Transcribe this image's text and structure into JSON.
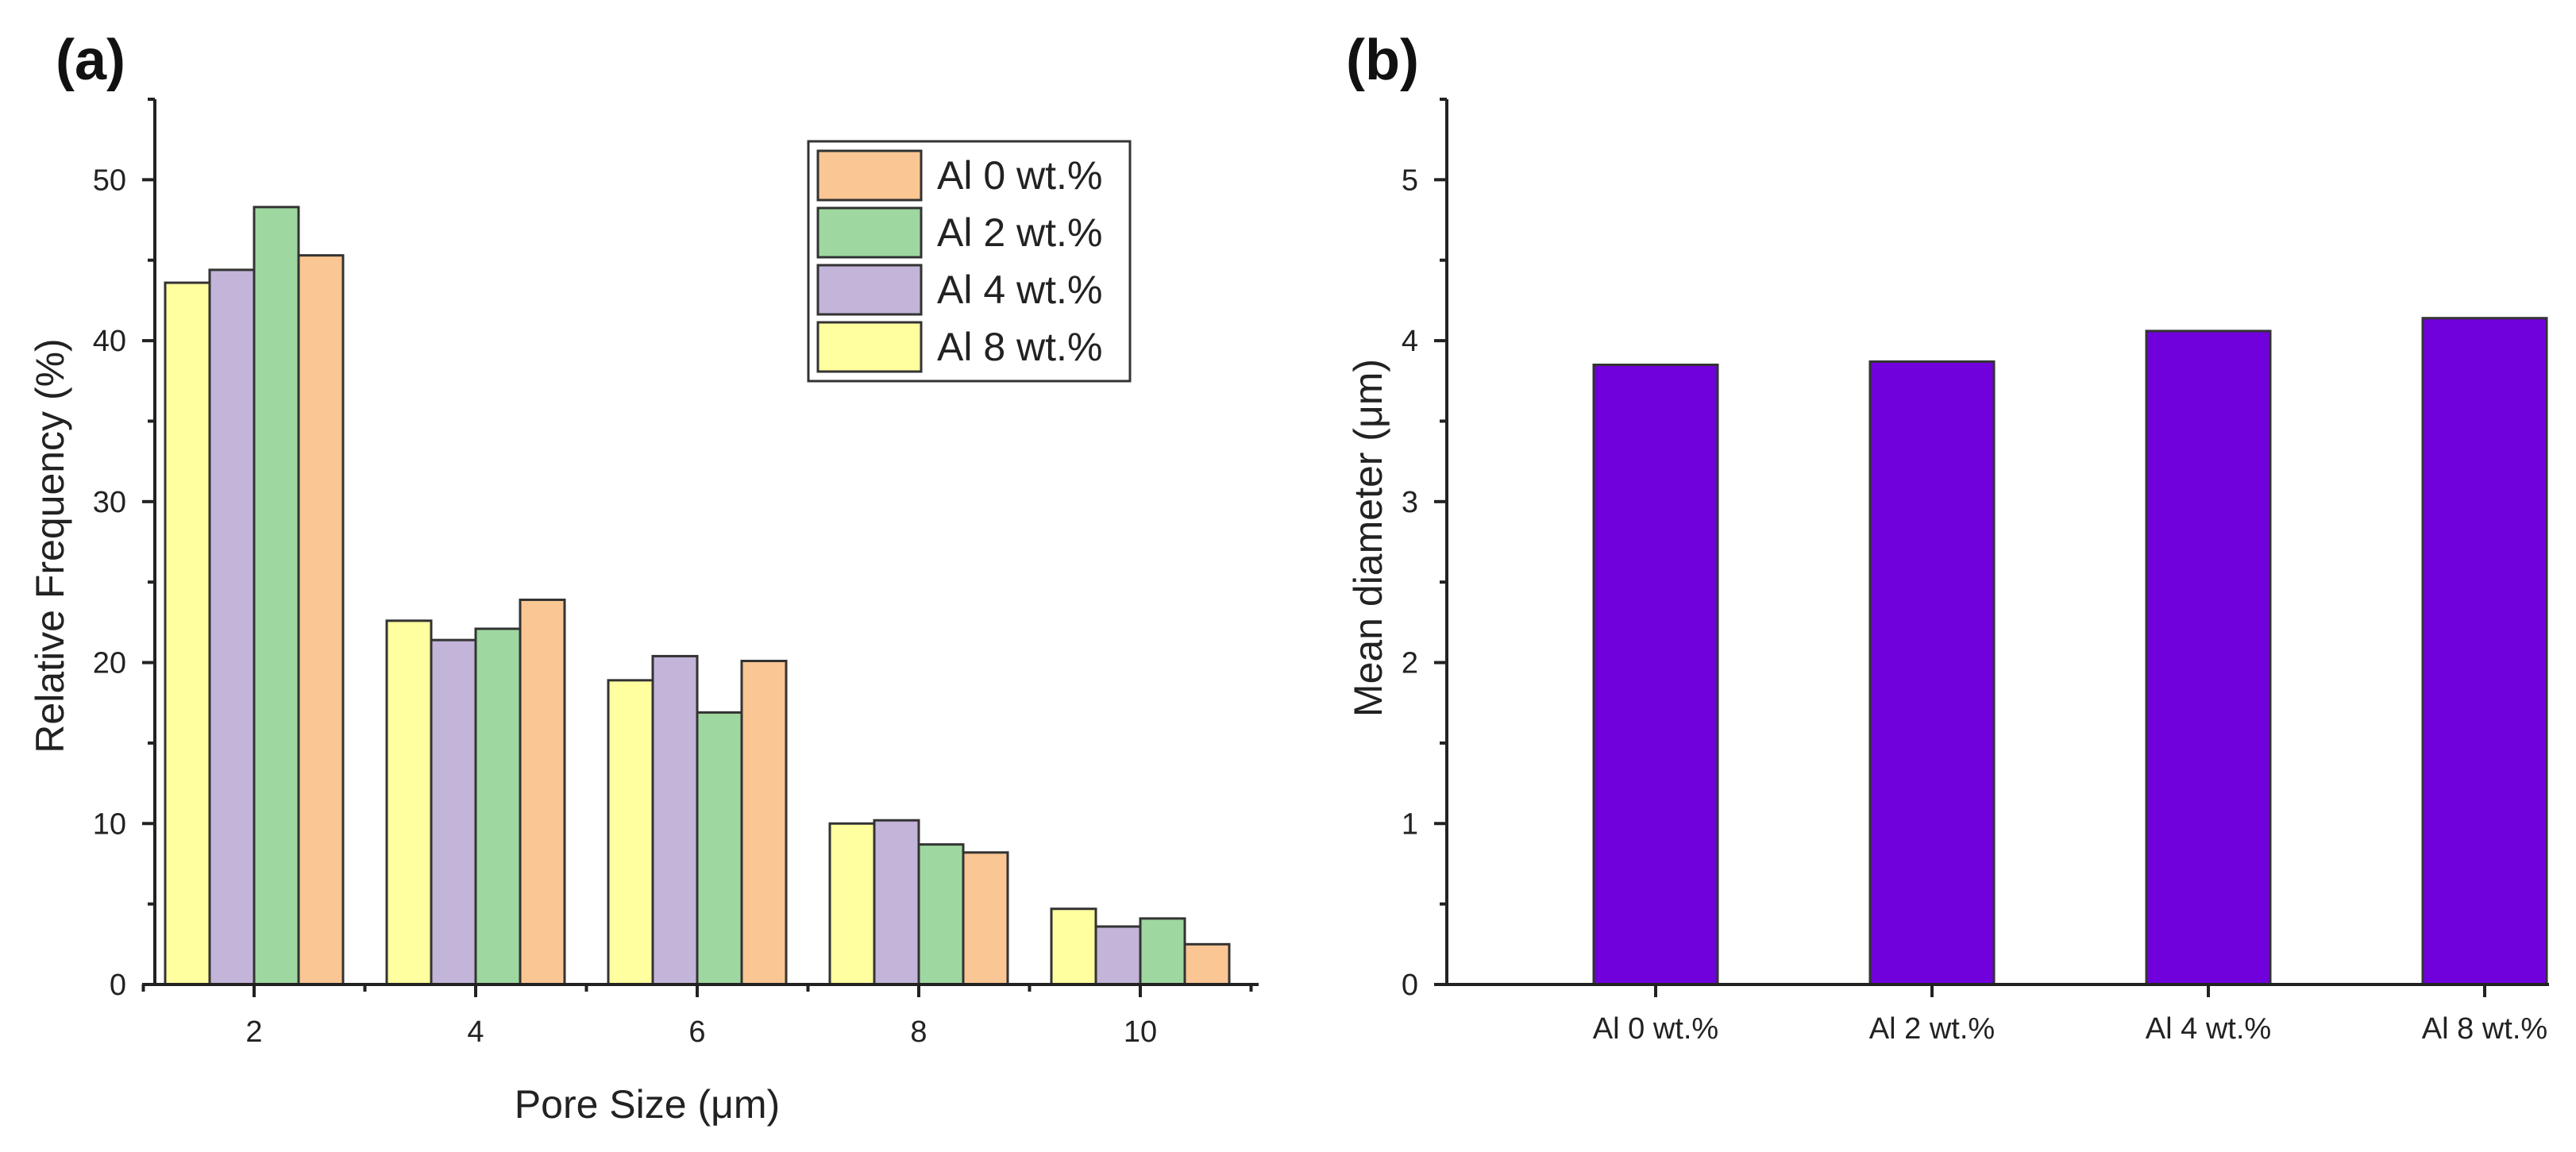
{
  "chart_data": [
    {
      "panel": "(a)",
      "type": "bar",
      "xlabel": "Pore Size (μm)",
      "ylabel": "Relative Frequency (%)",
      "categories": [
        "2",
        "4",
        "6",
        "8",
        "10"
      ],
      "yticks": [
        "0",
        "10",
        "20",
        "30",
        "40",
        "50"
      ],
      "ylim": [
        0,
        55
      ],
      "legend_position": "top-right",
      "series": [
        {
          "name": "Al 8 wt.%",
          "color": "#FFFFA0",
          "values": [
            43.6,
            22.6,
            18.9,
            10.0,
            4.7
          ]
        },
        {
          "name": "Al 4 wt.%",
          "color": "#C3B4D9",
          "values": [
            44.4,
            21.4,
            20.4,
            10.2,
            3.6
          ]
        },
        {
          "name": "Al 2 wt.%",
          "color": "#9ED8A0",
          "values": [
            48.3,
            22.1,
            16.9,
            8.7,
            4.1
          ]
        },
        {
          "name": "Al 0 wt.%",
          "color": "#FAC693",
          "values": [
            45.3,
            23.9,
            20.1,
            8.2,
            2.5
          ]
        }
      ],
      "legend_order": [
        "Al 0 wt.%",
        "Al 2 wt.%",
        "Al 4 wt.%",
        "Al 8 wt.%"
      ]
    },
    {
      "panel": "(b)",
      "type": "bar",
      "xlabel": "",
      "ylabel": "Mean diameter (μm)",
      "categories": [
        "Al 0 wt.%",
        "Al 2 wt.%",
        "Al 4 wt.%",
        "Al 8 wt.%"
      ],
      "values": [
        3.85,
        3.87,
        4.06,
        4.14
      ],
      "yticks": [
        "0",
        "1",
        "2",
        "3",
        "4",
        "5"
      ],
      "ylim": [
        0,
        5.5
      ],
      "color": "#7000DC"
    }
  ]
}
